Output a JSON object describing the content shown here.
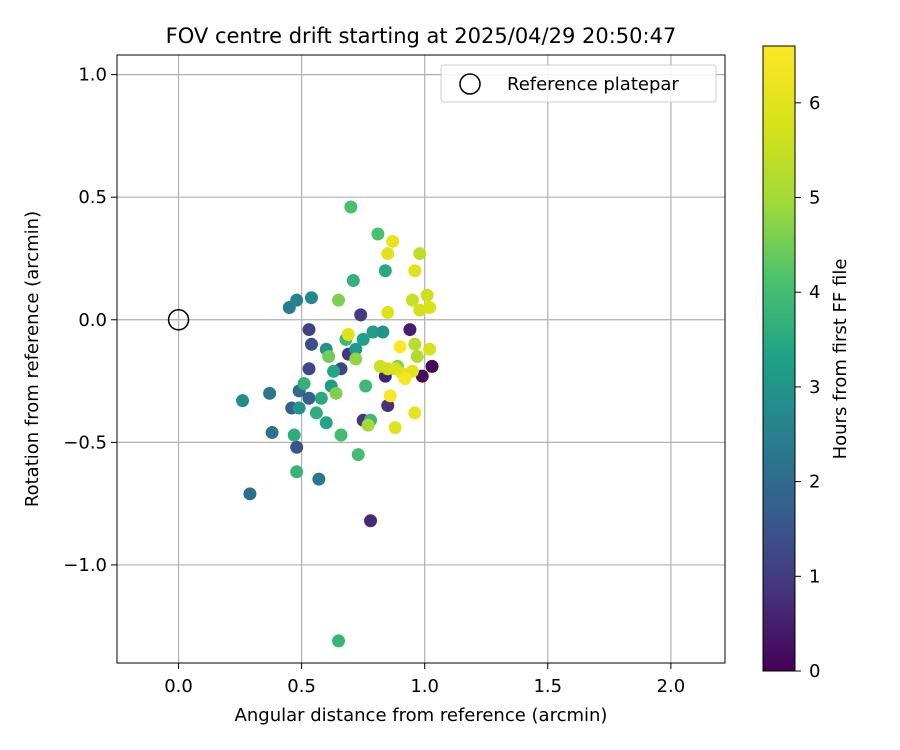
{
  "chart_data": {
    "type": "scatter",
    "title": "FOV centre drift starting at 2025/04/29 20:50:47",
    "xlabel": "Angular distance from reference (arcmin)",
    "ylabel": "Rotation from reference (arcmin)",
    "xlim": [
      -0.25,
      2.22
    ],
    "ylim": [
      -1.4,
      1.08
    ],
    "xticks": [
      0.0,
      0.5,
      1.0,
      1.5,
      2.0
    ],
    "xtick_labels": [
      "0.0",
      "0.5",
      "1.0",
      "1.5",
      "2.0"
    ],
    "yticks": [
      1.0,
      0.5,
      0.0,
      -0.5,
      -1.0
    ],
    "ytick_labels": [
      "1.0",
      "0.5",
      "0.0",
      "−0.5",
      "−1.0"
    ],
    "grid": true,
    "legend": {
      "position": "top-right",
      "label": "Reference platepar"
    },
    "reference_point": {
      "x": 0.0,
      "y": 0.0
    },
    "colorbar": {
      "label": "Hours from first FF file",
      "range": [
        0,
        6.6
      ],
      "ticks": [
        0,
        1,
        2,
        3,
        4,
        5,
        6
      ],
      "tick_labels": [
        "0",
        "1",
        "2",
        "3",
        "4",
        "5",
        "6"
      ],
      "colormap": "viridis"
    },
    "points": [
      {
        "x": 0.78,
        "y": -0.82,
        "c": 0.7
      },
      {
        "x": 1.03,
        "y": -0.19,
        "c": 0.1
      },
      {
        "x": 0.99,
        "y": -0.23,
        "c": 0.2
      },
      {
        "x": 0.94,
        "y": -0.04,
        "c": 0.5
      },
      {
        "x": 0.85,
        "y": -0.35,
        "c": 0.8
      },
      {
        "x": 0.84,
        "y": -0.23,
        "c": 0.6
      },
      {
        "x": 0.75,
        "y": -0.41,
        "c": 0.9
      },
      {
        "x": 0.74,
        "y": 0.02,
        "c": 1.0
      },
      {
        "x": 0.69,
        "y": -0.14,
        "c": 0.9
      },
      {
        "x": 0.66,
        "y": -0.2,
        "c": 1.2
      },
      {
        "x": 0.53,
        "y": -0.04,
        "c": 1.1
      },
      {
        "x": 0.53,
        "y": -0.2,
        "c": 1.3
      },
      {
        "x": 0.54,
        "y": -0.1,
        "c": 1.4
      },
      {
        "x": 0.48,
        "y": -0.52,
        "c": 1.5
      },
      {
        "x": 0.46,
        "y": -0.36,
        "c": 1.7
      },
      {
        "x": 0.53,
        "y": -0.32,
        "c": 1.8
      },
      {
        "x": 0.49,
        "y": -0.29,
        "c": 2.0
      },
      {
        "x": 0.29,
        "y": -0.71,
        "c": 2.1
      },
      {
        "x": 0.38,
        "y": -0.46,
        "c": 2.2
      },
      {
        "x": 0.37,
        "y": -0.3,
        "c": 2.3
      },
      {
        "x": 0.57,
        "y": -0.65,
        "c": 2.3
      },
      {
        "x": 0.45,
        "y": 0.05,
        "c": 2.4
      },
      {
        "x": 0.48,
        "y": 0.08,
        "c": 2.5
      },
      {
        "x": 0.54,
        "y": 0.09,
        "c": 2.7
      },
      {
        "x": 0.26,
        "y": -0.33,
        "c": 2.8
      },
      {
        "x": 0.49,
        "y": -0.36,
        "c": 3.0
      },
      {
        "x": 0.6,
        "y": -0.12,
        "c": 2.9
      },
      {
        "x": 0.62,
        "y": -0.27,
        "c": 3.2
      },
      {
        "x": 0.63,
        "y": -0.21,
        "c": 3.4
      },
      {
        "x": 0.58,
        "y": -0.32,
        "c": 3.5
      },
      {
        "x": 0.56,
        "y": -0.38,
        "c": 3.6
      },
      {
        "x": 0.6,
        "y": -0.42,
        "c": 3.4
      },
      {
        "x": 0.51,
        "y": -0.26,
        "c": 3.7
      },
      {
        "x": 0.47,
        "y": -0.47,
        "c": 3.6
      },
      {
        "x": 0.48,
        "y": -0.62,
        "c": 3.8
      },
      {
        "x": 0.65,
        "y": -1.31,
        "c": 3.8
      },
      {
        "x": 0.72,
        "y": -0.12,
        "c": 3.1
      },
      {
        "x": 0.75,
        "y": -0.08,
        "c": 3.3
      },
      {
        "x": 0.79,
        "y": -0.05,
        "c": 3.2
      },
      {
        "x": 0.83,
        "y": -0.05,
        "c": 3.0
      },
      {
        "x": 0.84,
        "y": 0.2,
        "c": 3.5
      },
      {
        "x": 0.71,
        "y": 0.16,
        "c": 3.7
      },
      {
        "x": 0.68,
        "y": -0.08,
        "c": 3.9
      },
      {
        "x": 0.66,
        "y": -0.47,
        "c": 4.0
      },
      {
        "x": 0.73,
        "y": -0.55,
        "c": 4.0
      },
      {
        "x": 0.78,
        "y": -0.41,
        "c": 3.9
      },
      {
        "x": 0.76,
        "y": -0.27,
        "c": 3.9
      },
      {
        "x": 0.81,
        "y": 0.35,
        "c": 4.1
      },
      {
        "x": 0.7,
        "y": 0.46,
        "c": 4.1
      },
      {
        "x": 0.65,
        "y": 0.08,
        "c": 4.6
      },
      {
        "x": 0.61,
        "y": -0.15,
        "c": 4.5
      },
      {
        "x": 0.64,
        "y": -0.3,
        "c": 4.6
      },
      {
        "x": 0.72,
        "y": -0.16,
        "c": 4.8
      },
      {
        "x": 0.89,
        "y": -0.19,
        "c": 4.7
      },
      {
        "x": 0.77,
        "y": -0.43,
        "c": 5.0
      },
      {
        "x": 0.95,
        "y": 0.08,
        "c": 5.5
      },
      {
        "x": 0.97,
        "y": -0.15,
        "c": 5.2
      },
      {
        "x": 0.96,
        "y": -0.1,
        "c": 5.3
      },
      {
        "x": 0.98,
        "y": 0.27,
        "c": 5.4
      },
      {
        "x": 1.01,
        "y": 0.1,
        "c": 5.6
      },
      {
        "x": 0.98,
        "y": 0.04,
        "c": 5.7
      },
      {
        "x": 1.02,
        "y": 0.05,
        "c": 5.8
      },
      {
        "x": 0.96,
        "y": 0.2,
        "c": 5.9
      },
      {
        "x": 0.85,
        "y": 0.27,
        "c": 6.0
      },
      {
        "x": 0.87,
        "y": 0.32,
        "c": 6.1
      },
      {
        "x": 0.85,
        "y": 0.03,
        "c": 5.9
      },
      {
        "x": 0.82,
        "y": -0.19,
        "c": 5.6
      },
      {
        "x": 0.85,
        "y": -0.2,
        "c": 5.7
      },
      {
        "x": 0.88,
        "y": -0.2,
        "c": 5.8
      },
      {
        "x": 0.91,
        "y": -0.22,
        "c": 6.0
      },
      {
        "x": 0.88,
        "y": -0.44,
        "c": 5.9
      },
      {
        "x": 0.96,
        "y": -0.38,
        "c": 6.1
      },
      {
        "x": 0.95,
        "y": -0.21,
        "c": 6.0
      },
      {
        "x": 1.02,
        "y": -0.12,
        "c": 5.8
      },
      {
        "x": 0.69,
        "y": -0.06,
        "c": 5.9
      },
      {
        "x": 0.86,
        "y": -0.31,
        "c": 6.5
      },
      {
        "x": 0.9,
        "y": -0.11,
        "c": 6.6
      },
      {
        "x": 0.92,
        "y": -0.24,
        "c": 6.4
      }
    ]
  }
}
